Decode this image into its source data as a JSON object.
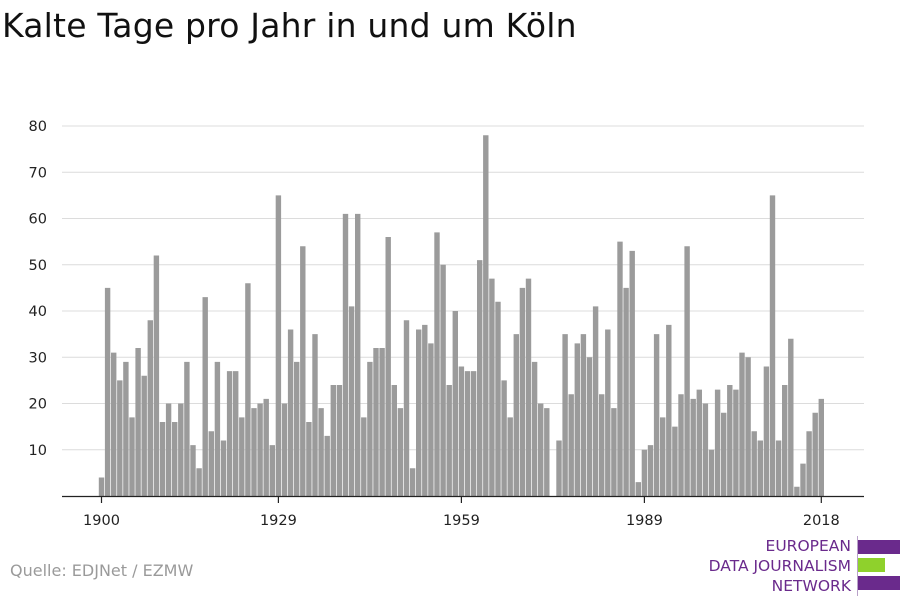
{
  "title": "Kalte Tage pro Jahr in und um Köln",
  "source": "Quelle: EDJNet / EZMW",
  "logo": {
    "lines": [
      "EUROPEAN",
      "DATA JOURNALISM",
      "NETWORK"
    ],
    "colors": {
      "purple": "#6a2a8c",
      "green": "#8fd12c"
    }
  },
  "chart_data": {
    "type": "bar",
    "title": "Kalte Tage pro Jahr in und um Köln",
    "xlabel": "",
    "ylabel": "",
    "x_start": 1900,
    "x_end": 2018,
    "ylim": [
      0,
      80
    ],
    "yticks": [
      10,
      20,
      30,
      40,
      50,
      60,
      70,
      80
    ],
    "xticks": [
      1900,
      1929,
      1959,
      1989,
      2018
    ],
    "grid": true,
    "bar_color": "#9b9b9b",
    "values": [
      4,
      45,
      31,
      25,
      29,
      17,
      32,
      26,
      38,
      52,
      16,
      20,
      16,
      20,
      29,
      11,
      6,
      43,
      14,
      29,
      12,
      27,
      27,
      17,
      46,
      19,
      20,
      21,
      11,
      65,
      20,
      36,
      29,
      54,
      16,
      35,
      19,
      13,
      24,
      24,
      61,
      41,
      61,
      17,
      29,
      32,
      32,
      56,
      24,
      19,
      38,
      6,
      36,
      37,
      33,
      57,
      50,
      24,
      40,
      28,
      27,
      27,
      51,
      78,
      47,
      42,
      25,
      17,
      35,
      45,
      47,
      29,
      20,
      19,
      0,
      12,
      35,
      22,
      33,
      35,
      30,
      41,
      22,
      36,
      19,
      55,
      45,
      53,
      3,
      10,
      11,
      35,
      17,
      37,
      15,
      22,
      54,
      21,
      23,
      20,
      10,
      23,
      18,
      24,
      23,
      31,
      30,
      14,
      12,
      28,
      65,
      12,
      24,
      34,
      2,
      7,
      14,
      18,
      21
    ]
  }
}
